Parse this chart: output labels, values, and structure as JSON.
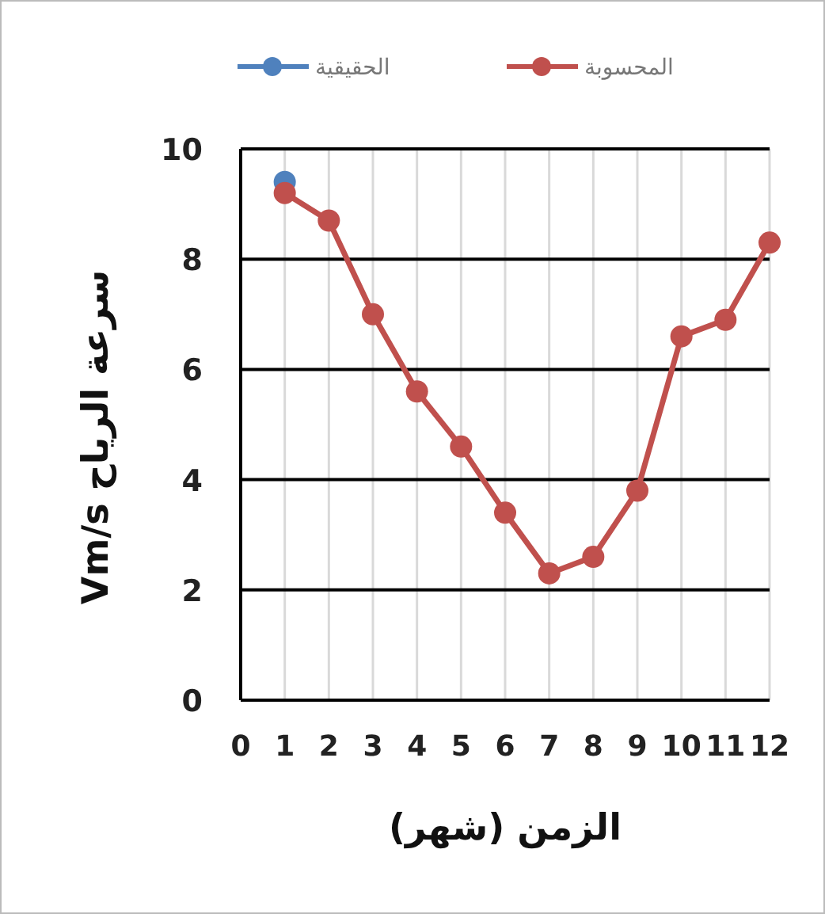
{
  "chart_data": {
    "type": "line",
    "xlabel": "الزمن (شهر)",
    "ylabel": "سرعة الرياح Vm/s",
    "x": [
      1,
      2,
      3,
      4,
      5,
      6,
      7,
      8,
      9,
      10,
      11,
      12
    ],
    "series": [
      {
        "name": "الحقيقية",
        "color": "#4f81bd",
        "values": [
          9.4,
          null,
          null,
          null,
          null,
          null,
          null,
          null,
          null,
          null,
          null,
          null
        ]
      },
      {
        "name": "المحسوبة",
        "color": "#c0504d",
        "values": [
          9.2,
          8.7,
          7.0,
          5.6,
          4.6,
          3.4,
          2.3,
          2.6,
          3.8,
          6.6,
          6.9,
          8.3
        ]
      }
    ],
    "xlim": [
      0,
      12
    ],
    "ylim": [
      0,
      10
    ],
    "xticks": [
      0,
      1,
      2,
      3,
      4,
      5,
      6,
      7,
      8,
      9,
      10,
      11,
      12
    ],
    "yticks": [
      0,
      2,
      4,
      6,
      8,
      10
    ],
    "grid": true,
    "legend": "top",
    "marker": "circle"
  }
}
